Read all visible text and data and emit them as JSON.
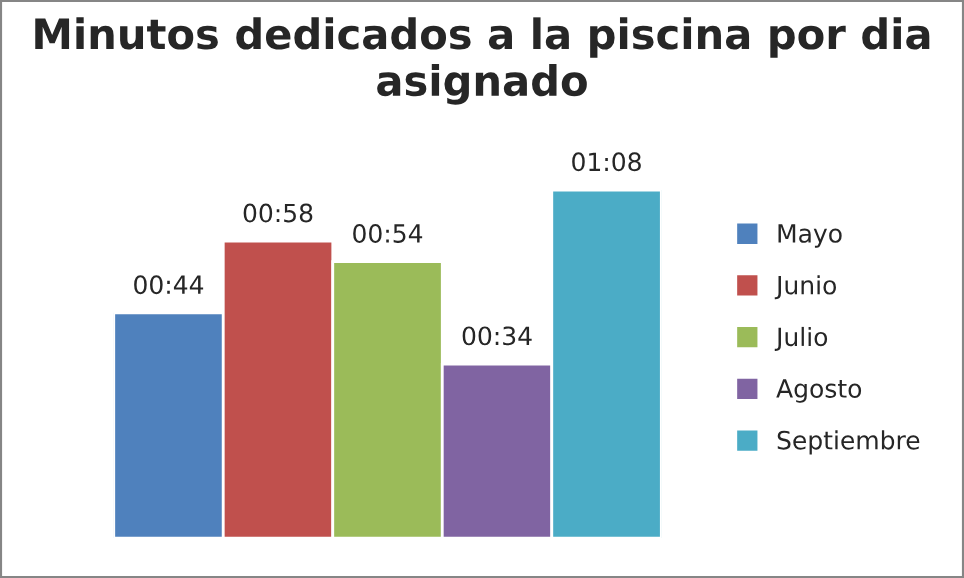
{
  "chart_data": {
    "type": "bar",
    "title": "Minutos dedicados a la piscina por dia asignado",
    "categories": [
      null
    ],
    "series": [
      {
        "name": "Mayo",
        "color": "#4f81bd",
        "values": [
          44
        ],
        "value_labels": [
          "00:44"
        ]
      },
      {
        "name": "Junio",
        "color": "#c0504d",
        "values": [
          58
        ],
        "value_labels": [
          "00:58"
        ]
      },
      {
        "name": "Julio",
        "color": "#9bbb59",
        "values": [
          54
        ],
        "value_labels": [
          "00:54"
        ]
      },
      {
        "name": "Agosto",
        "color": "#8064a2",
        "values": [
          34
        ],
        "value_labels": [
          "00:34"
        ]
      },
      {
        "name": "Septiembre",
        "color": "#4bacc6",
        "values": [
          68
        ],
        "value_labels": [
          "01:08"
        ]
      }
    ],
    "legend": "right",
    "grid": false,
    "tick_labels": false
  }
}
